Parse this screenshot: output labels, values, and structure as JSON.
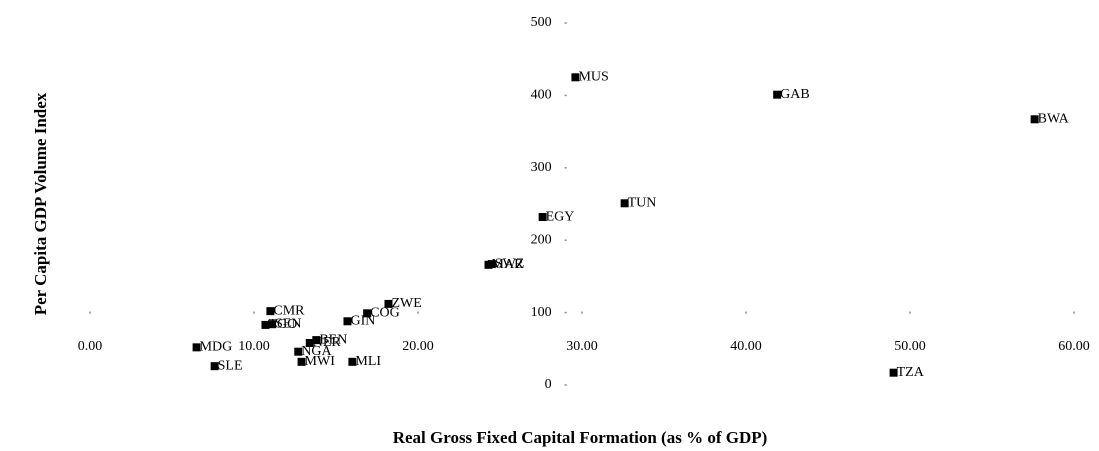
{
  "chart_data": {
    "type": "scatter",
    "xlabel": "Real Gross Fixed Capital Formation (as % of GDP)",
    "ylabel": "Per Capita GDP Volume Index",
    "color": "#000000",
    "xlim": [
      0,
      60
    ],
    "ylim": [
      0,
      500
    ],
    "xticks": [
      {
        "value": 0,
        "label": "0.00"
      },
      {
        "value": 10,
        "label": "10.00"
      },
      {
        "value": 20,
        "label": "20.00"
      },
      {
        "value": 30,
        "label": "30.00"
      },
      {
        "value": 40,
        "label": "40.00"
      },
      {
        "value": 50,
        "label": "50.00"
      },
      {
        "value": 60,
        "label": "60.00"
      }
    ],
    "yticks": [
      0,
      100,
      200,
      300,
      400,
      500
    ],
    "x_axis_crosses_y": 100,
    "y_axis_crosses_x": 29,
    "points": [
      {
        "label": "MUS",
        "x": 29.6,
        "y": 425
      },
      {
        "label": "GAB",
        "x": 41.9,
        "y": 401
      },
      {
        "label": "BWA",
        "x": 57.6,
        "y": 367
      },
      {
        "label": "TUN",
        "x": 32.6,
        "y": 251
      },
      {
        "label": "EGY",
        "x": 27.6,
        "y": 232
      },
      {
        "label": "SWZ",
        "x": 24.5,
        "y": 167
      },
      {
        "label": "MAR",
        "x": 24.3,
        "y": 166
      },
      {
        "label": "ZWE",
        "x": 18.2,
        "y": 112
      },
      {
        "label": "COG",
        "x": 16.9,
        "y": 99
      },
      {
        "label": "CMR",
        "x": 11.0,
        "y": 102
      },
      {
        "label": "GIN",
        "x": 15.7,
        "y": 88
      },
      {
        "label": "TGO",
        "x": 10.7,
        "y": 83
      },
      {
        "label": "SEN",
        "x": 11.1,
        "y": 84
      },
      {
        "label": "BEN",
        "x": 13.8,
        "y": 62
      },
      {
        "label": "NER",
        "x": 13.4,
        "y": 58
      },
      {
        "label": "NGA",
        "x": 12.7,
        "y": 46
      },
      {
        "label": "MWI",
        "x": 12.9,
        "y": 32
      },
      {
        "label": "MLI",
        "x": 16.0,
        "y": 32
      },
      {
        "label": "MDG",
        "x": 6.5,
        "y": 52
      },
      {
        "label": "SLE",
        "x": 7.6,
        "y": 26
      },
      {
        "label": "TZA",
        "x": 49.0,
        "y": 17
      }
    ]
  }
}
